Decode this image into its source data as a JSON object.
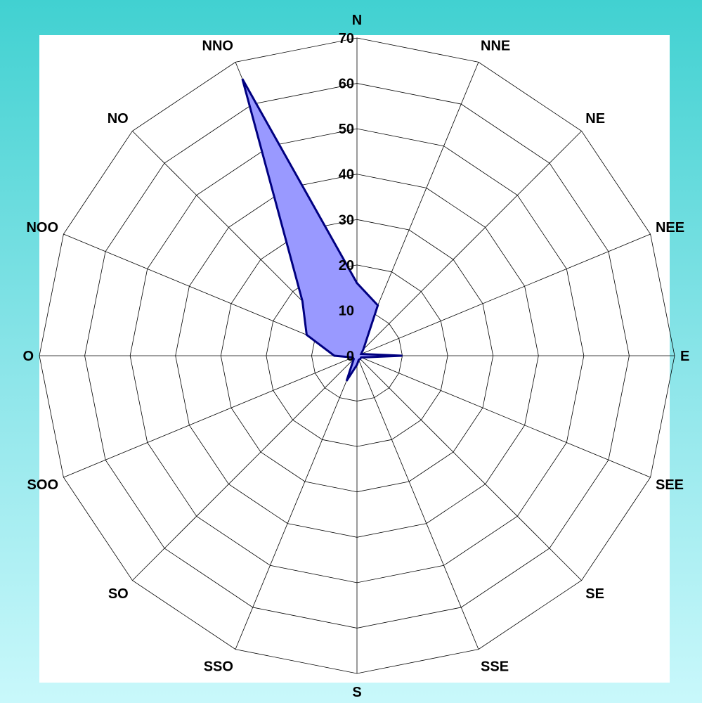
{
  "chart_data": {
    "type": "radar",
    "categories": [
      "N",
      "NNE",
      "NE",
      "NEE",
      "E",
      "SEE",
      "SE",
      "SSE",
      "S",
      "SSO",
      "SO",
      "SOO",
      "O",
      "NOO",
      "NO",
      "NNO"
    ],
    "series": [
      {
        "values": [
          16,
          12,
          2,
          1,
          10,
          1,
          1,
          1,
          2,
          6,
          1,
          1,
          5,
          12,
          17,
          66
        ]
      }
    ],
    "rlim": [
      0,
      70
    ],
    "ticks": [
      0,
      10,
      20,
      30,
      40,
      50,
      60,
      70
    ],
    "grid": true,
    "colors": {
      "fill": "#9999ff",
      "stroke": "#000080",
      "plot_background": "#ffffff",
      "grid": "#000000"
    }
  }
}
